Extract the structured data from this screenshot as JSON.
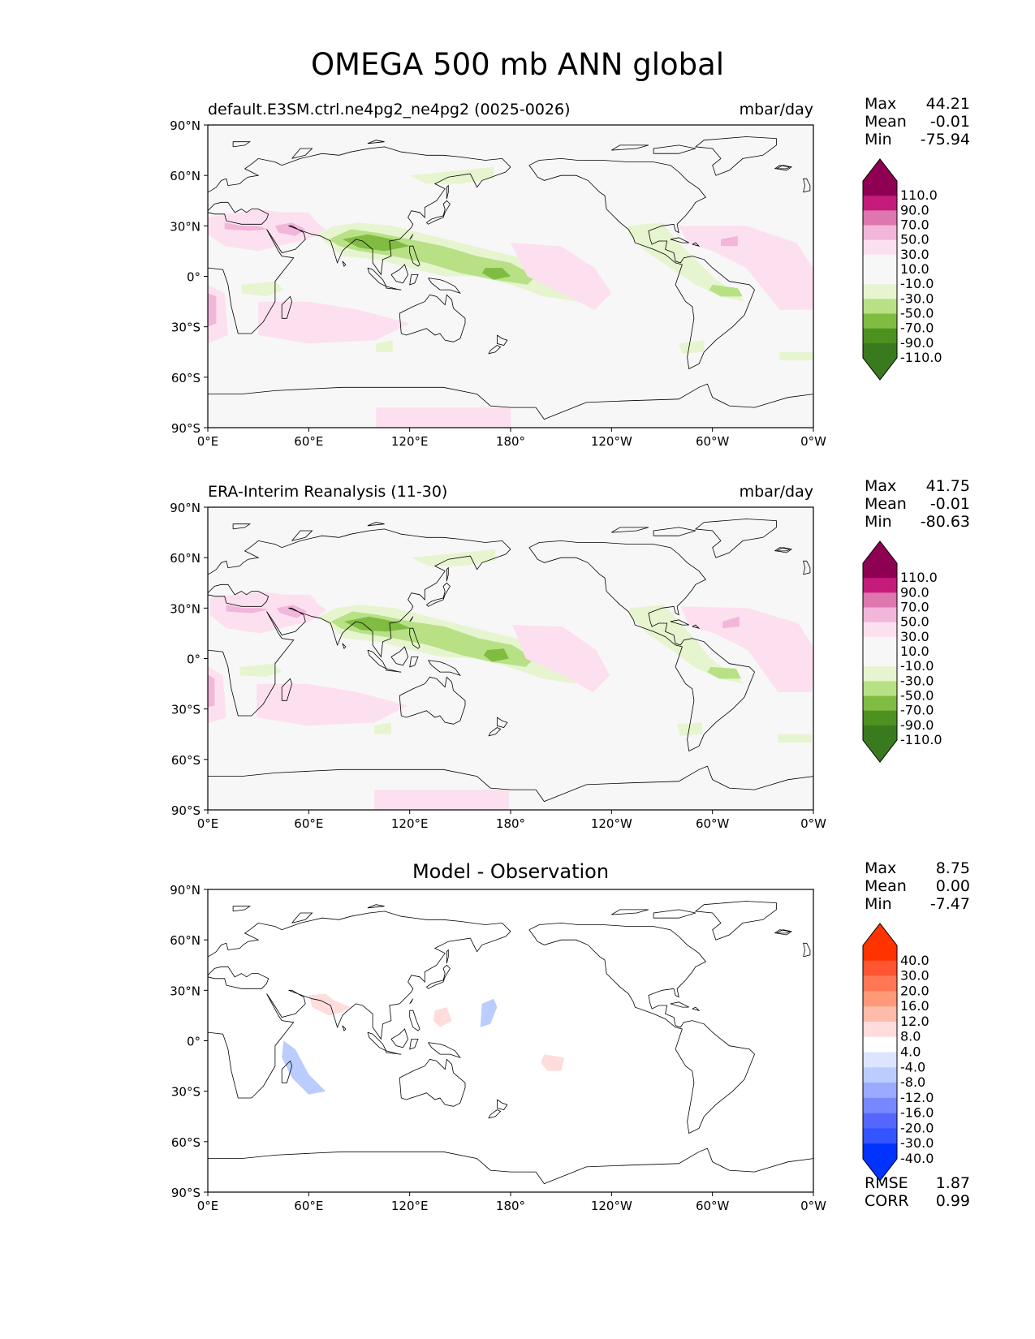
{
  "title": "OMEGA 500 mb ANN global",
  "axes": {
    "lat_ticks": [
      "90°N",
      "60°N",
      "30°N",
      "0°",
      "30°S",
      "60°S",
      "90°S"
    ],
    "lon_ticks": [
      "0°E",
      "60°E",
      "120°E",
      "180°",
      "120°W",
      "60°W",
      "0°W"
    ]
  },
  "panels": [
    {
      "title": "default.E3SM.ctrl.ne4pg2_ne4pg2 (0025-0026)",
      "units": "mbar/day",
      "stats": {
        "max_label": "Max",
        "max": "44.21",
        "mean_label": "Mean",
        "mean": "-0.01",
        "min_label": "Min",
        "min": "-75.94"
      },
      "colorbar_labels": [
        "110.0",
        "90.0",
        "70.0",
        "50.0",
        "30.0",
        "10.0",
        "-10.0",
        "-30.0",
        "-50.0",
        "-70.0",
        "-90.0",
        "-110.0"
      ]
    },
    {
      "title": "ERA-Interim Reanalysis (11-30)",
      "units": "mbar/day",
      "stats": {
        "max_label": "Max",
        "max": "41.75",
        "mean_label": "Mean",
        "mean": "-0.01",
        "min_label": "Min",
        "min": "-80.63"
      },
      "colorbar_labels": [
        "110.0",
        "90.0",
        "70.0",
        "50.0",
        "30.0",
        "10.0",
        "-10.0",
        "-30.0",
        "-50.0",
        "-70.0",
        "-90.0",
        "-110.0"
      ]
    },
    {
      "title": "Model - Observation",
      "units": "",
      "stats": {
        "max_label": "Max",
        "max": "8.75",
        "mean_label": "Mean",
        "mean": "0.00",
        "min_label": "Min",
        "min": "-7.47"
      },
      "colorbar_labels": [
        "40.0",
        "30.0",
        "20.0",
        "16.0",
        "12.0",
        "8.0",
        "4.0",
        "-4.0",
        "-8.0",
        "-12.0",
        "-16.0",
        "-20.0",
        "-30.0",
        "-40.0"
      ],
      "metrics": {
        "rmse_label": "RMSE",
        "rmse": "1.87",
        "corr_label": "CORR",
        "corr": "0.99"
      }
    }
  ],
  "colors": {
    "diverging_pg": [
      "#8e0152",
      "#c51b7d",
      "#de77ae",
      "#f1b6da",
      "#fde0ef",
      "#f7f7f7",
      "#e6f5d0",
      "#b8e186",
      "#7fbc41",
      "#4d9221",
      "#276419"
    ],
    "diff_rb": [
      "#ff3300",
      "#ff5533",
      "#ff7755",
      "#ff9977",
      "#ffbbaa",
      "#ffdddd",
      "#ffffff",
      "#dde4ff",
      "#bbccff",
      "#99aaff",
      "#7788ff",
      "#5566ff",
      "#3355ff",
      "#0033ff"
    ]
  }
}
